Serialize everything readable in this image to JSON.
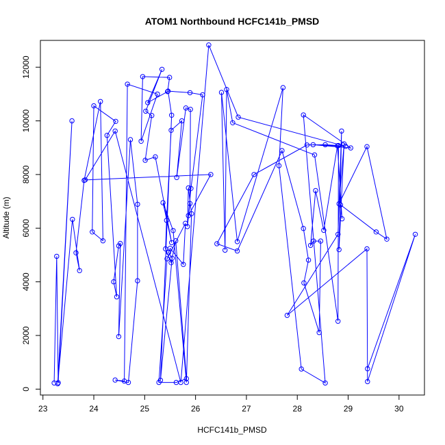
{
  "chart_data": {
    "type": "line",
    "title": "ATOM1 Northbound HCFC141b_PMSD",
    "xlabel": "HCFC141b_PMSD",
    "ylabel": "Altitude (m)",
    "xlim": [
      22.95,
      30.5
    ],
    "ylim": [
      -220,
      13000
    ],
    "xticks": [
      23,
      24,
      25,
      26,
      27,
      28,
      29,
      30
    ],
    "yticks": [
      0,
      2000,
      4000,
      6000,
      8000,
      10000,
      12000
    ],
    "grid": false,
    "legend": "none",
    "series": [
      {
        "color": "#0000ff",
        "marker": "open-circle",
        "points": [
          [
            23.22,
            230
          ],
          [
            23.27,
            4950
          ],
          [
            23.3,
            240
          ],
          [
            23.57,
            10000
          ],
          [
            23.29,
            200
          ],
          [
            23.58,
            6330
          ],
          [
            23.72,
            4420
          ],
          [
            23.65,
            5080
          ],
          [
            23.81,
            7780
          ],
          [
            24.13,
            10720
          ],
          [
            24.18,
            5530
          ],
          [
            23.97,
            5860
          ],
          [
            24.0,
            10560
          ],
          [
            24.43,
            9980
          ],
          [
            24.26,
            9460
          ],
          [
            24.45,
            3440
          ],
          [
            24.39,
            4000
          ],
          [
            24.49,
            5340
          ],
          [
            24.52,
            5430
          ],
          [
            24.49,
            1960
          ],
          [
            24.72,
            9300
          ],
          [
            24.86,
            6890
          ],
          [
            24.86,
            4040
          ],
          [
            24.68,
            250
          ],
          [
            24.42,
            340
          ],
          [
            24.6,
            300
          ],
          [
            24.66,
            11370
          ],
          [
            25.25,
            11000
          ],
          [
            24.93,
            9240
          ],
          [
            24.96,
            11650
          ],
          [
            25.49,
            11620
          ],
          [
            25.45,
            11090
          ],
          [
            25.06,
            10680
          ],
          [
            25.34,
            11920
          ],
          [
            25.02,
            10360
          ],
          [
            25.14,
            10200
          ],
          [
            25.01,
            8530
          ],
          [
            25.21,
            8660
          ],
          [
            25.53,
            5460
          ],
          [
            25.36,
            6950
          ],
          [
            25.56,
            5910
          ],
          [
            25.82,
            250
          ],
          [
            25.92,
            6540
          ],
          [
            25.86,
            7500
          ],
          [
            25.84,
            6060
          ],
          [
            25.89,
            6920
          ],
          [
            25.9,
            10430
          ],
          [
            25.81,
            10480
          ],
          [
            25.63,
            7890
          ],
          [
            25.73,
            10000
          ],
          [
            25.52,
            9650
          ],
          [
            25.43,
            6290
          ],
          [
            25.41,
            5230
          ],
          [
            25.52,
            4710
          ],
          [
            25.61,
            5530
          ],
          [
            25.82,
            390
          ],
          [
            25.62,
            250
          ],
          [
            25.28,
            250
          ],
          [
            25.44,
            4860
          ],
          [
            25.8,
            6180
          ],
          [
            25.76,
            4650
          ],
          [
            25.5,
            5250
          ],
          [
            25.47,
            5090
          ],
          [
            25.54,
            4880
          ],
          [
            25.31,
            330
          ],
          [
            25.53,
            10210
          ],
          [
            25.46,
            11110
          ],
          [
            25.89,
            11050
          ],
          [
            26.14,
            10970
          ],
          [
            25.91,
            7480
          ],
          [
            25.86,
            6470
          ],
          [
            26.3,
            8000
          ],
          [
            23.83,
            7800
          ],
          [
            24.42,
            9620
          ],
          [
            25.71,
            250
          ],
          [
            26.26,
            12830
          ],
          [
            26.84,
            10140
          ],
          [
            28.95,
            9050
          ],
          [
            28.31,
            9110
          ],
          [
            29.05,
            8990
          ],
          [
            28.12,
            10220
          ],
          [
            28.55,
            230
          ],
          [
            28.08,
            750
          ],
          [
            27.64,
            8330
          ],
          [
            27.72,
            11240
          ],
          [
            26.82,
            5500
          ],
          [
            26.51,
            11060
          ],
          [
            26.58,
            5180
          ],
          [
            26.61,
            11170
          ],
          [
            26.73,
            9930
          ],
          [
            28.34,
            8730
          ],
          [
            28.8,
            2530
          ],
          [
            28.81,
            9080
          ],
          [
            28.55,
            9110
          ],
          [
            28.19,
            9100
          ],
          [
            27.15,
            8000
          ],
          [
            26.42,
            5420
          ],
          [
            26.82,
            5150
          ],
          [
            27.7,
            8890
          ],
          [
            28.12,
            5990
          ],
          [
            28.22,
            4810
          ],
          [
            28.13,
            3960
          ],
          [
            28.43,
            2110
          ],
          [
            28.46,
            5520
          ],
          [
            28.32,
            5520
          ],
          [
            28.26,
            5360
          ],
          [
            28.36,
            7400
          ],
          [
            28.52,
            5920
          ],
          [
            28.79,
            9070
          ],
          [
            28.88,
            6350
          ],
          [
            28.85,
            6870
          ],
          [
            29.55,
            5860
          ],
          [
            29.76,
            5590
          ],
          [
            29.37,
            9040
          ],
          [
            28.82,
            6910
          ],
          [
            28.92,
            9140
          ],
          [
            28.82,
            5200
          ],
          [
            28.87,
            9620
          ],
          [
            28.8,
            5770
          ],
          [
            27.8,
            2750
          ],
          [
            29.37,
            5230
          ],
          [
            29.38,
            280
          ],
          [
            30.32,
            5770
          ],
          [
            29.38,
            760
          ]
        ]
      }
    ]
  }
}
